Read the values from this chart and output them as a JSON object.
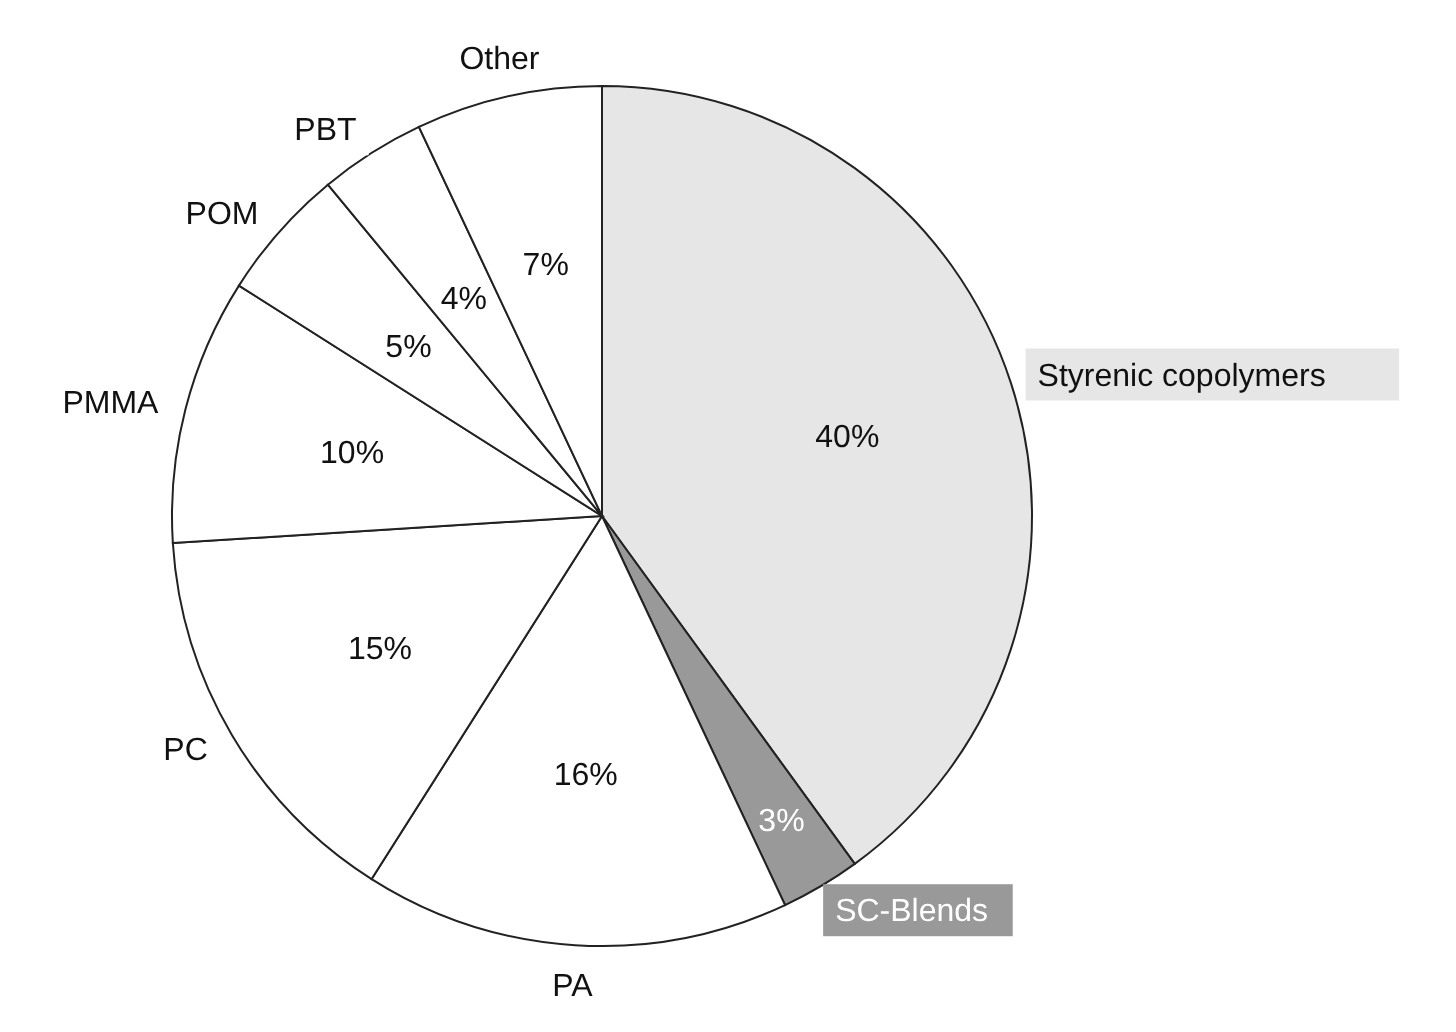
{
  "chart_data": {
    "type": "pie",
    "categories": [
      "Styrenic copolymers",
      "SC-Blends",
      "PA",
      "PC",
      "PMMA",
      "POM",
      "PBT",
      "Other"
    ],
    "values": [
      40,
      3,
      16,
      15,
      10,
      5,
      4,
      7
    ],
    "value_labels": [
      "40%",
      "3%",
      "16%",
      "15%",
      "10%",
      "5%",
      "4%",
      "7%"
    ],
    "colors": [
      "#e6e6e6",
      "#999999",
      "#ffffff",
      "#ffffff",
      "#ffffff",
      "#ffffff",
      "#ffffff",
      "#ffffff"
    ]
  }
}
